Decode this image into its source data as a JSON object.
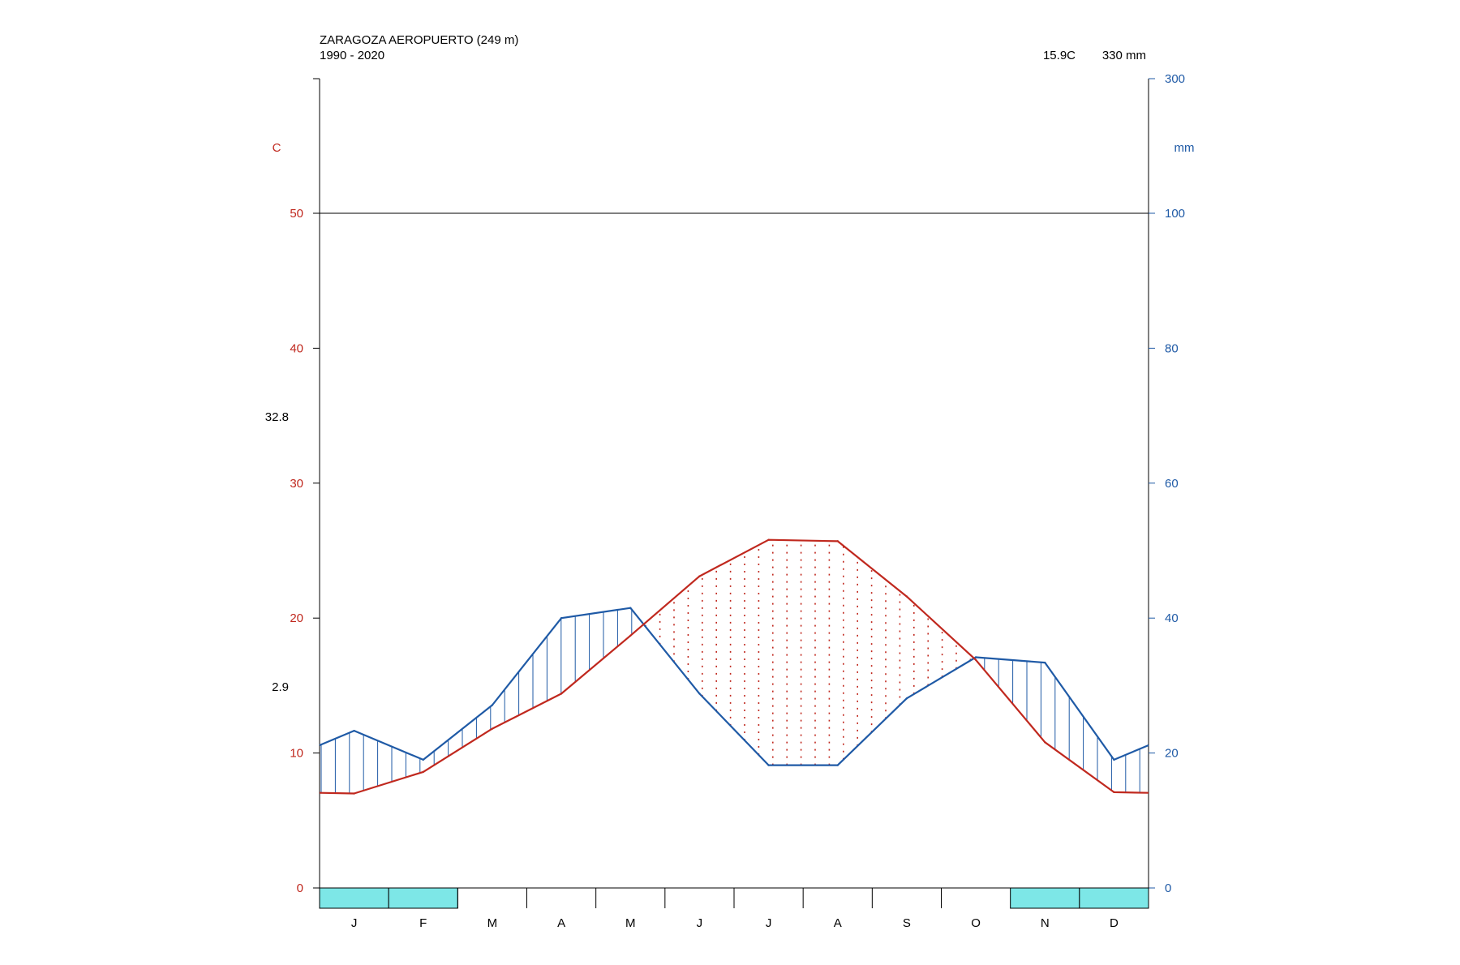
{
  "chart_data": {
    "type": "line",
    "title": "ZARAGOZA AEROPUERTO (249 m)",
    "subtitle": "1990 - 2020",
    "mean_temp_label": "15.9C",
    "annual_precip_label": "330 mm",
    "left_axis": {
      "unit_label": "C",
      "ticks": [
        0,
        10,
        20,
        30,
        40,
        50
      ],
      "tick_labels": [
        "0",
        "10",
        "20",
        "30",
        "40",
        "50"
      ],
      "ylim": [
        0,
        60
      ]
    },
    "right_axis": {
      "unit_label": "mm",
      "ticks": [
        0,
        20,
        40,
        60,
        80,
        100,
        300
      ],
      "tick_labels": [
        "0",
        "20",
        "40",
        "60",
        "80",
        "100",
        "300"
      ],
      "scale_note": "1 C = 2 mm up to 100 mm; compressed above 100 mm"
    },
    "annotations": {
      "max_temp_label": "32.8",
      "max_temp_value": 32.8,
      "min_temp_label": "2.9",
      "min_temp_value": 2.9
    },
    "categories": [
      "J",
      "F",
      "M",
      "A",
      "M",
      "J",
      "J",
      "A",
      "S",
      "O",
      "N",
      "D"
    ],
    "series": [
      {
        "values": [
          7.0,
          8.6,
          11.8,
          14.4,
          18.7,
          23.1,
          25.8,
          25.7,
          21.6,
          16.9,
          10.8,
          7.1
        ],
        "unit": "C"
      },
      {
        "values": [
          23.3,
          19.0,
          27.1,
          40.0,
          41.5,
          28.8,
          18.2,
          18.2,
          28.1,
          34.2,
          33.4,
          19.0
        ],
        "unit": "mm"
      }
    ],
    "frost_months": {
      "flags": [
        true,
        true,
        false,
        false,
        false,
        false,
        false,
        false,
        false,
        false,
        true,
        true
      ]
    },
    "colors": {
      "temperature": "#c0281e",
      "precipitation": "#1f5aa6",
      "frost": "#7de7e7",
      "axis": "#000000"
    }
  }
}
